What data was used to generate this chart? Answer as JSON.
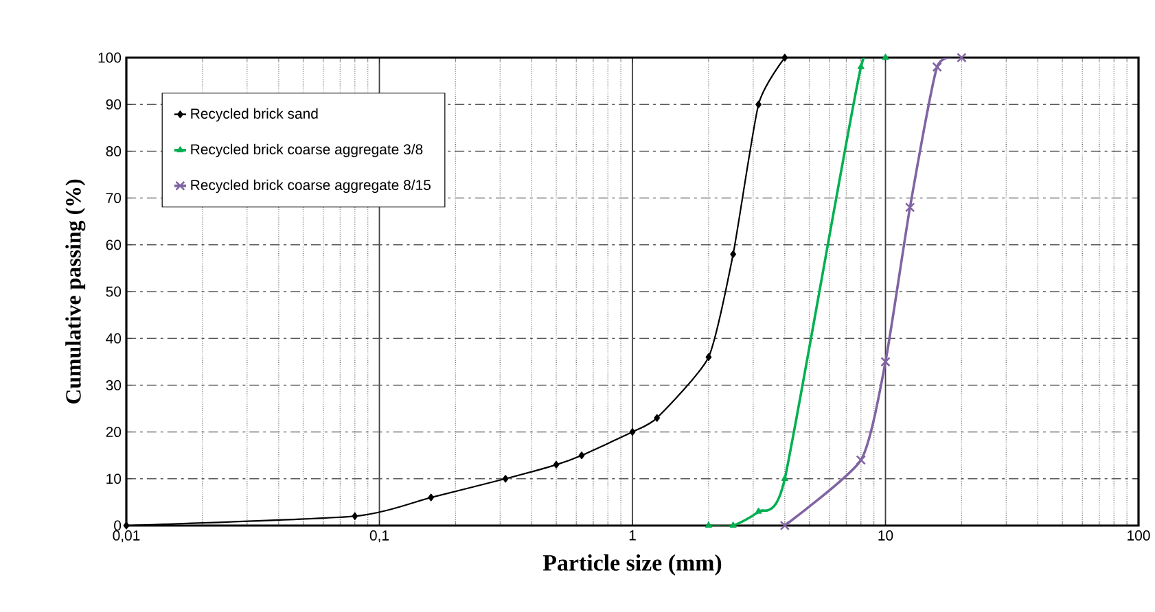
{
  "chart_data": {
    "type": "line",
    "xlabel": "Particle size (mm)",
    "ylabel": "Cumulative passing (%)",
    "log": "x",
    "xlim": [
      0.01,
      100
    ],
    "xticks": [
      {
        "value": 0.01,
        "label": "0,01"
      },
      {
        "value": 0.1,
        "label": "0,1"
      },
      1,
      10,
      100
    ],
    "ylim": [
      0,
      100
    ],
    "yticks": [
      0,
      10,
      20,
      30,
      40,
      50,
      60,
      70,
      80,
      90,
      100
    ],
    "grid": true,
    "legend": "top left",
    "series": [
      {
        "name": "Recycled brick sand",
        "color": "#000000",
        "marker": "diamond",
        "x": [
          0.01,
          0.08,
          0.16,
          0.315,
          0.5,
          0.63,
          1,
          1.25,
          2,
          2.5,
          3.15,
          4
        ],
        "values": [
          0,
          2,
          6,
          10,
          13,
          15,
          20,
          23,
          36,
          58,
          90,
          100
        ]
      },
      {
        "name": "Recycled brick coarse aggregate 3/8",
        "color": "#00b050",
        "marker": "triangle",
        "x": [
          2,
          2.5,
          3.15,
          4,
          8,
          10
        ],
        "values": [
          0,
          0,
          3,
          10,
          98,
          100
        ]
      },
      {
        "name": "Recycled brick coarse aggregate 8/15",
        "color": "#8064a2",
        "marker": "cross",
        "x": [
          4,
          8,
          10,
          12.5,
          16,
          20
        ],
        "values": [
          0,
          14,
          35,
          68,
          98,
          100
        ]
      }
    ]
  }
}
